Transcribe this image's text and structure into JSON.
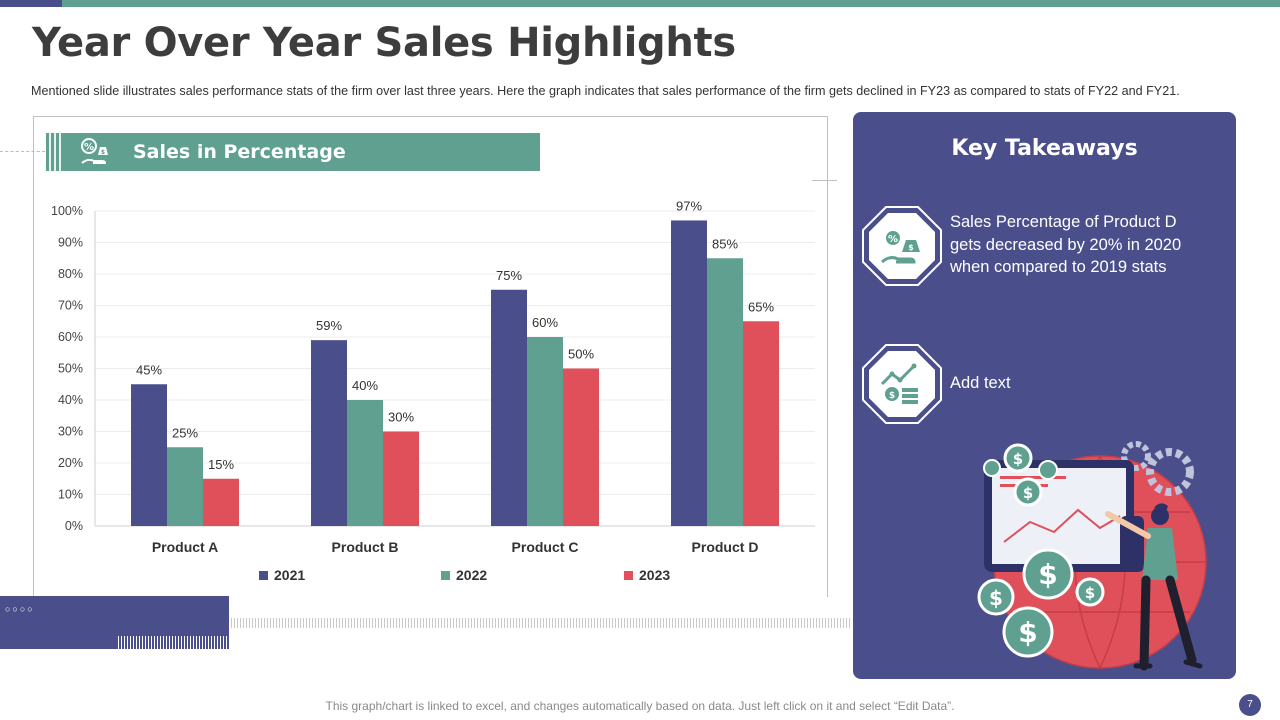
{
  "slide": {
    "title": "Year Over Year Sales Highlights",
    "subtitle": "Mentioned slide illustrates sales performance stats of the firm over last three years. Here the graph indicates that sales performance of the firm gets declined in FY23 as compared to stats of FY22 and FY21.",
    "footer": "This graph/chart is linked to excel, and changes automatically based on data. Just left click on it and select “Edit Data”.",
    "page_number": "7"
  },
  "chart_header": {
    "label": "Sales in Percentage",
    "icon": "money-percent-icon"
  },
  "chart_data": {
    "type": "bar",
    "title": "Sales in Percentage",
    "categories": [
      "Product A",
      "Product B",
      "Product C",
      "Product D"
    ],
    "series": [
      {
        "name": "2021",
        "color": "#4a4f8c",
        "values": [
          45,
          59,
          75,
          97
        ]
      },
      {
        "name": "2022",
        "color": "#5fa090",
        "values": [
          25,
          40,
          60,
          85
        ]
      },
      {
        "name": "2023",
        "color": "#e0505a",
        "values": [
          15,
          30,
          50,
          65
        ]
      }
    ],
    "ylim": [
      0,
      100
    ],
    "yticks": [
      "0%",
      "10%",
      "20%",
      "30%",
      "40%",
      "50%",
      "60%",
      "70%",
      "80%",
      "90%",
      "100%"
    ],
    "value_suffix": "%",
    "xlabel": "",
    "ylabel": "",
    "legend": "bottom"
  },
  "takeaways": {
    "title": "Key Takeaways",
    "items": [
      {
        "icon": "money-percent-icon",
        "text": "Sales Percentage of Product D gets decreased by 20% in 2020 when compared to 2019 stats"
      },
      {
        "icon": "money-growth-chart-icon",
        "text": "Add text"
      }
    ]
  },
  "colors": {
    "navy": "#4a4f8c",
    "teal": "#5fa090",
    "red": "#e0505a"
  }
}
